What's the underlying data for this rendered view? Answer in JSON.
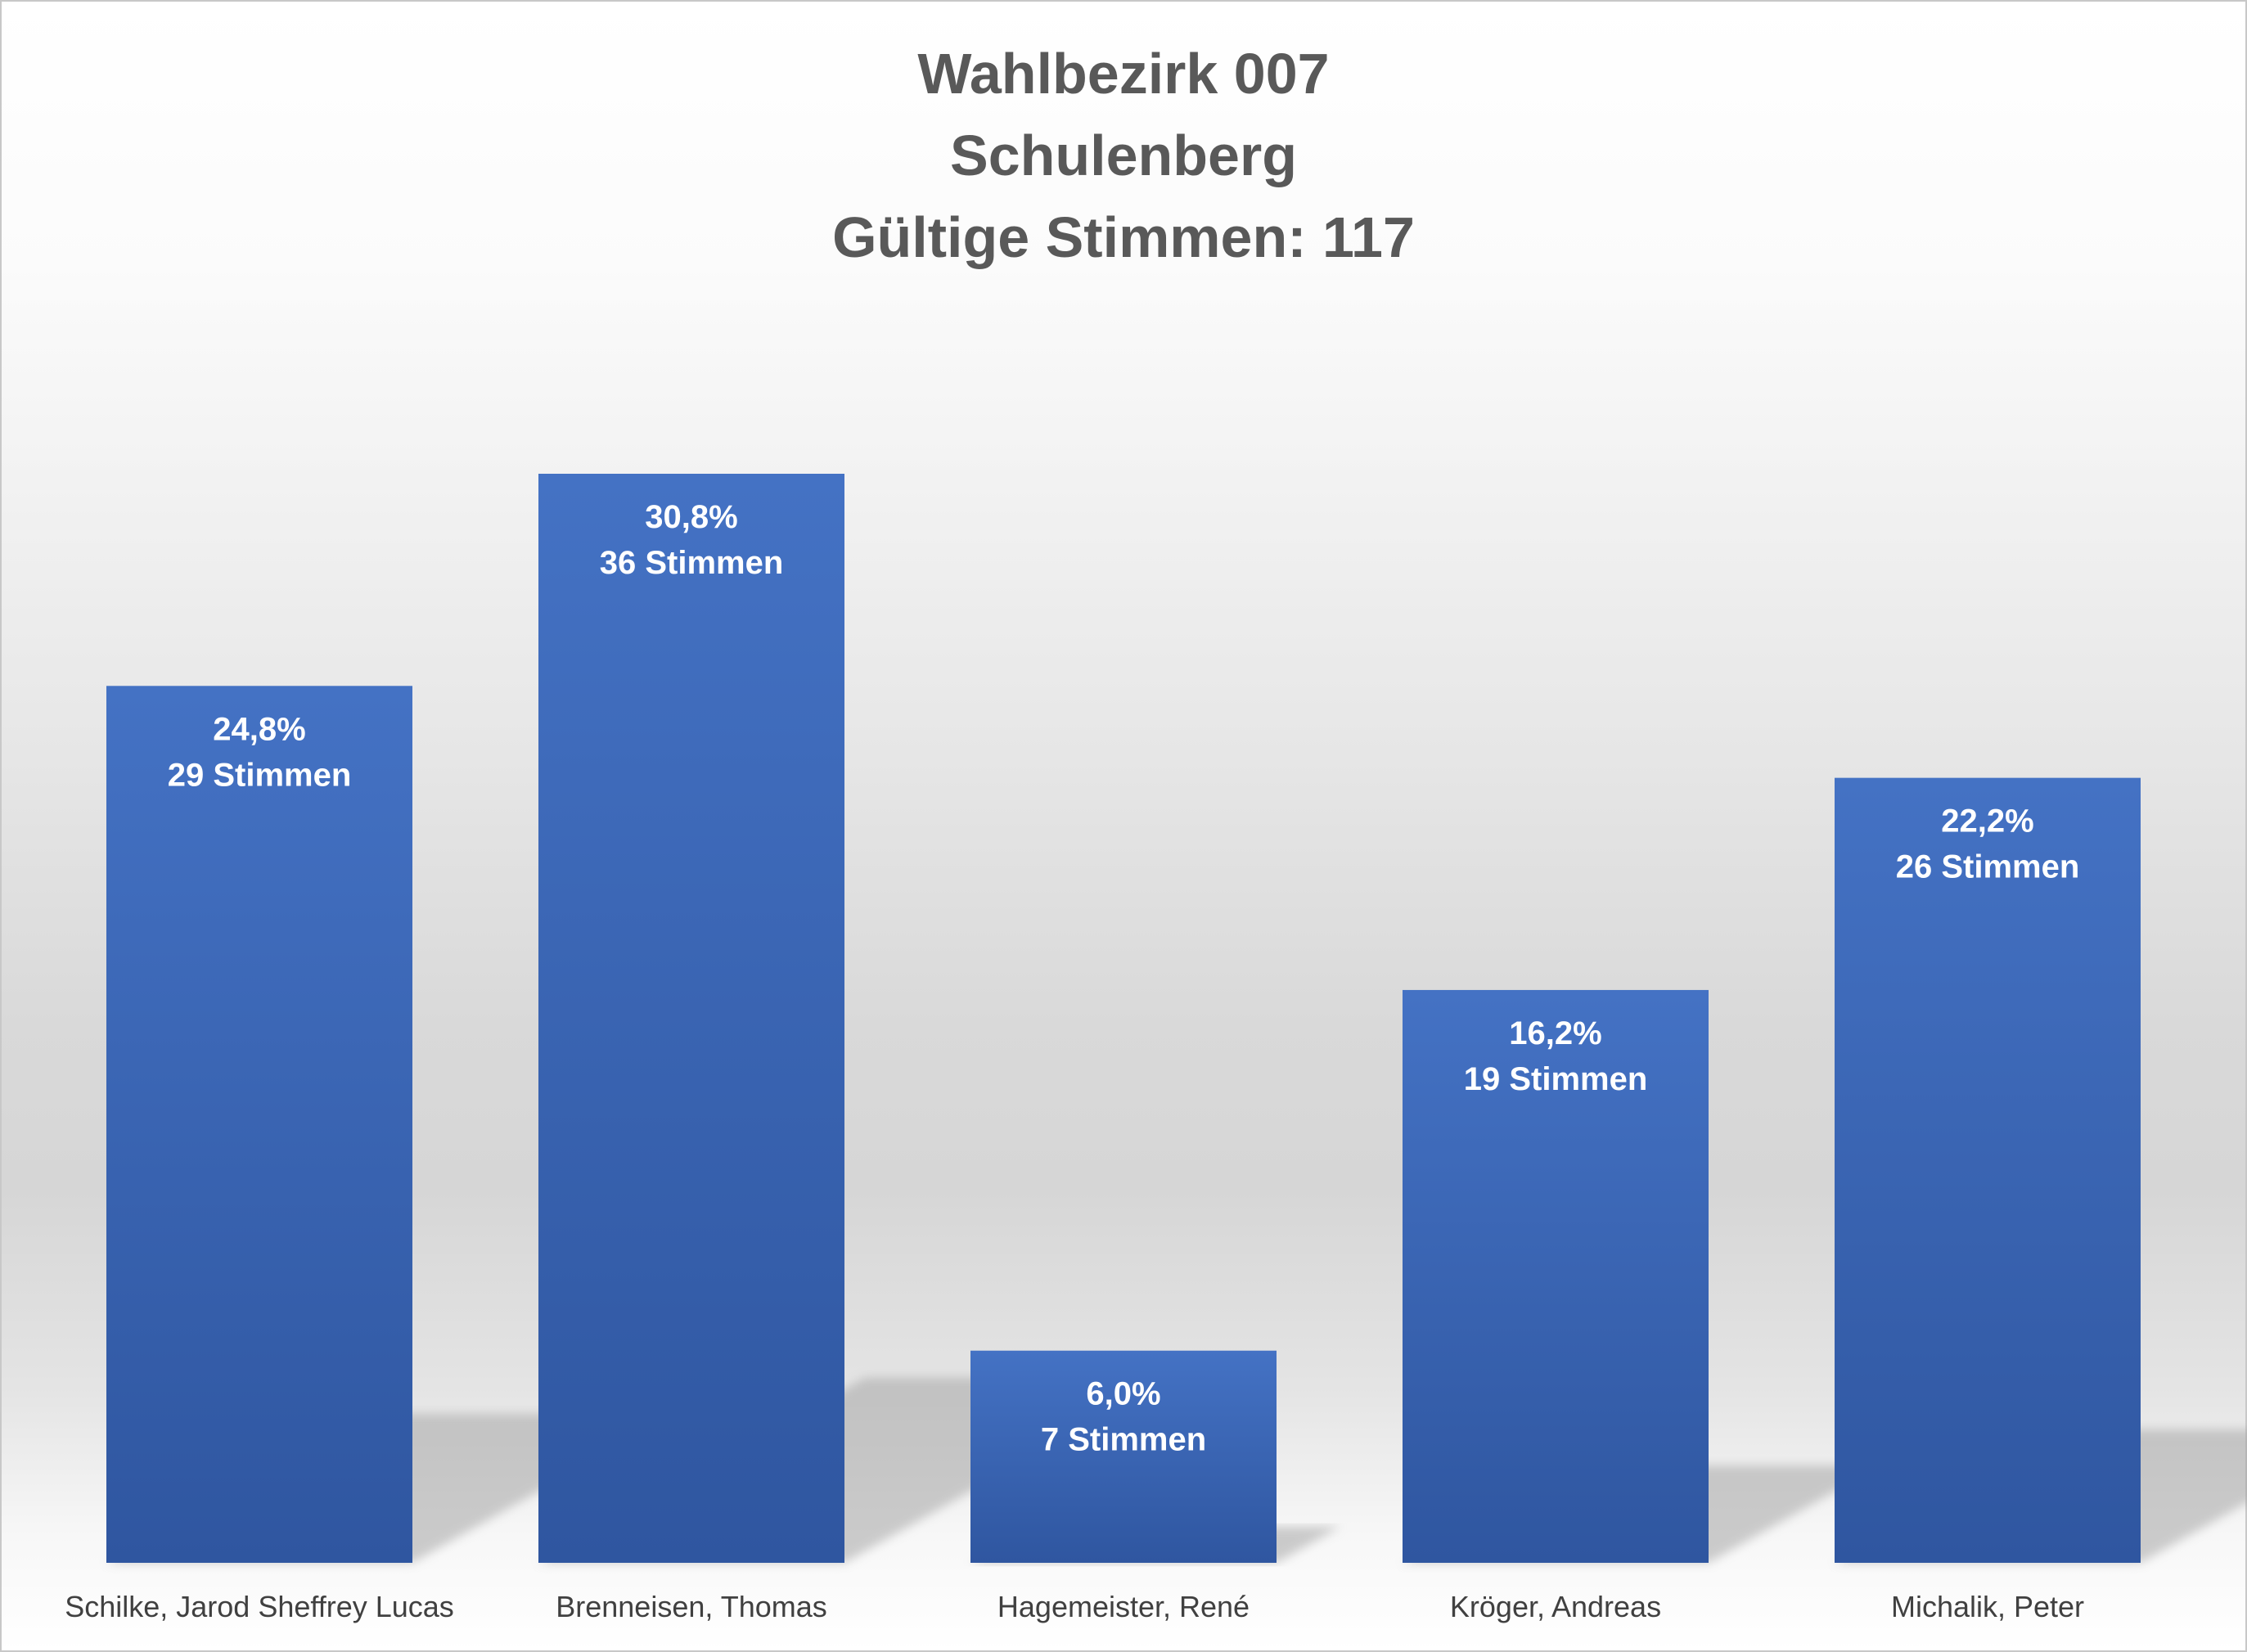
{
  "chart_data": {
    "type": "bar",
    "title_lines": [
      "Wahlbezirk 007",
      "Schulenberg",
      "Gültige Stimmen: 117"
    ],
    "categories": [
      "Schilke, Jarod Sheffrey Lucas",
      "Brenneisen, Thomas",
      "Hagemeister, René",
      "Kröger, Andreas",
      "Michalik, Peter"
    ],
    "values": [
      24.8,
      30.8,
      6.0,
      16.2,
      22.2
    ],
    "votes": [
      29,
      36,
      7,
      19,
      26
    ],
    "value_labels": [
      "24,8%",
      "30,8%",
      "6,0%",
      "16,2%",
      "22,2%"
    ],
    "vote_labels": [
      "29 Stimmen",
      "36 Stimmen",
      "7 Stimmen",
      "19 Stimmen",
      "26 Stimmen"
    ],
    "xlabel": "",
    "ylabel": "",
    "ylim": [
      0,
      30.8
    ],
    "grid": false,
    "legend": "none",
    "bar_color_top": "#4472C4",
    "bar_color_bottom": "#2F56A0",
    "shadow_color": "#a6a6a6"
  }
}
